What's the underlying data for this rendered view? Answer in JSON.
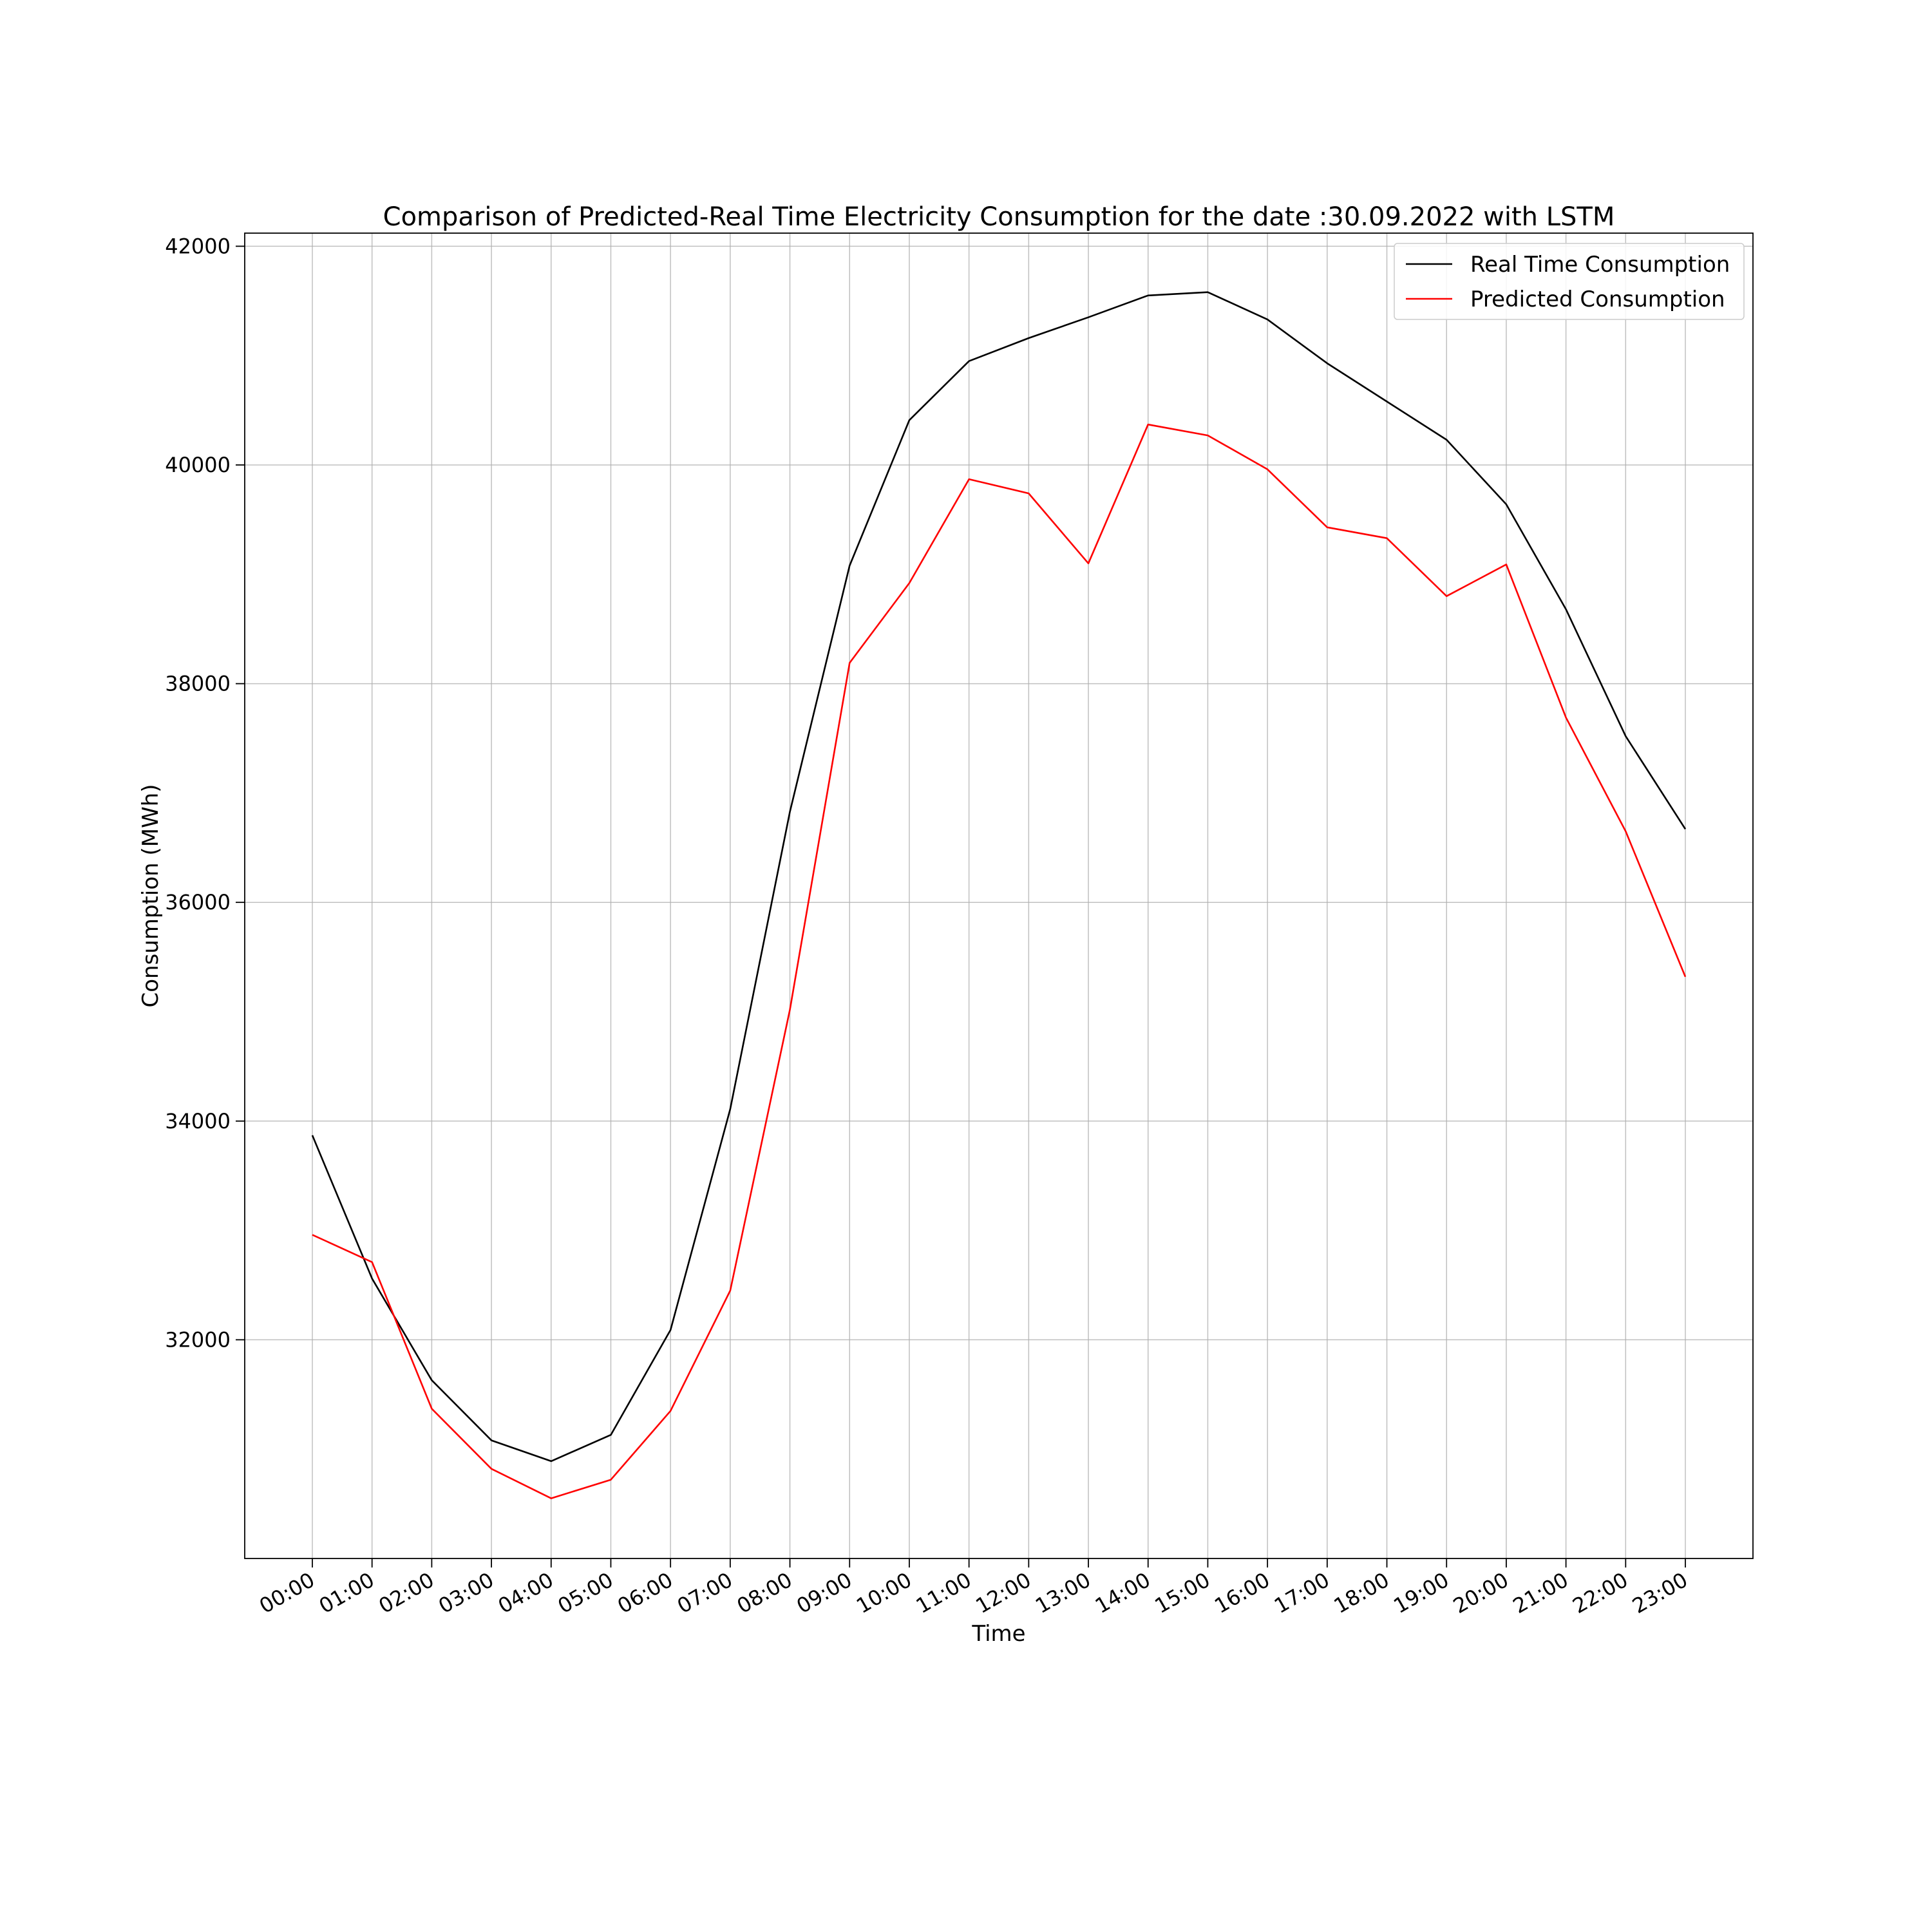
{
  "chart_data": {
    "type": "line",
    "title": "Comparison of Predicted-Real Time Electricity Consumption for the date :30.09.2022 with LSTM",
    "xlabel": "Time",
    "ylabel": "Consumption (MWh)",
    "x": [
      "00:00",
      "01:00",
      "02:00",
      "03:00",
      "04:00",
      "05:00",
      "06:00",
      "07:00",
      "08:00",
      "09:00",
      "10:00",
      "11:00",
      "12:00",
      "13:00",
      "14:00",
      "15:00",
      "16:00",
      "17:00",
      "18:00",
      "19:00",
      "20:00",
      "21:00",
      "22:00",
      "23:00"
    ],
    "yticks": [
      32000,
      34000,
      36000,
      38000,
      40000,
      42000
    ],
    "ylim": [
      30000,
      42120
    ],
    "grid": true,
    "legend_position": "top-right",
    "series": [
      {
        "name": "Real Time Consumption",
        "color": "#000000",
        "values": [
          33870,
          32560,
          31630,
          31080,
          30890,
          31130,
          32090,
          34110,
          36830,
          39080,
          40410,
          40950,
          41160,
          41350,
          41550,
          41580,
          41330,
          40930,
          40580,
          40230,
          39640,
          38680,
          37520,
          36670
        ]
      },
      {
        "name": "Predicted Consumption",
        "color": "#ff0000",
        "values": [
          32960,
          32710,
          31370,
          30820,
          30550,
          30720,
          31350,
          32450,
          35020,
          38190,
          38920,
          39870,
          39740,
          39100,
          40370,
          40270,
          39960,
          39430,
          39330,
          38800,
          39090,
          37690,
          36650,
          35320
        ]
      }
    ]
  }
}
